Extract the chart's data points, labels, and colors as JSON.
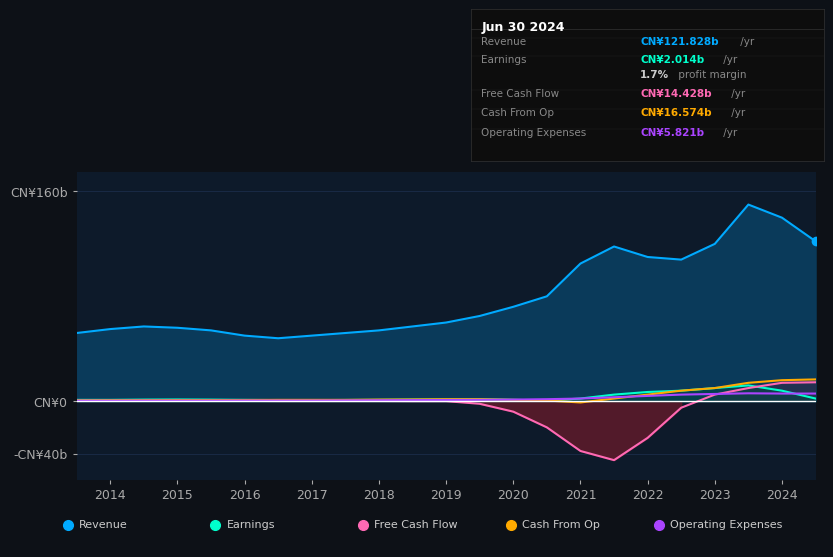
{
  "bg_color": "#0d1117",
  "plot_bg_color": "#0d1a2a",
  "grid_color": "#1e3050",
  "title_date": "Jun 30 2024",
  "table_items": [
    {
      "label": "Revenue",
      "value": "CN¥121.828b /yr",
      "color": "#00aaff"
    },
    {
      "label": "Earnings",
      "value": "CN¥2.014b /yr",
      "color": "#00ffcc"
    },
    {
      "label": "",
      "value": "1.7% profit margin",
      "color": "#ffffff"
    },
    {
      "label": "Free Cash Flow",
      "value": "CN¥14.428b /yr",
      "color": "#ff69b4"
    },
    {
      "label": "Cash From Op",
      "value": "CN¥16.574b /yr",
      "color": "#ffaa00"
    },
    {
      "label": "Operating Expenses",
      "value": "CN¥5.821b /yr",
      "color": "#aa44ff"
    }
  ],
  "years": [
    2013.5,
    2014.0,
    2014.5,
    2015.0,
    2015.5,
    2016.0,
    2016.5,
    2017.0,
    2017.5,
    2018.0,
    2018.5,
    2019.0,
    2019.5,
    2020.0,
    2020.5,
    2021.0,
    2021.5,
    2022.0,
    2022.5,
    2023.0,
    2023.5,
    2024.0,
    2024.5
  ],
  "revenue": [
    52,
    55,
    57,
    56,
    54,
    50,
    48,
    50,
    52,
    54,
    57,
    60,
    65,
    72,
    80,
    105,
    118,
    110,
    108,
    120,
    150,
    140,
    122
  ],
  "earnings": [
    1.0,
    1.0,
    1.2,
    1.3,
    1.2,
    1.0,
    0.8,
    0.8,
    0.9,
    1.0,
    1.2,
    1.3,
    1.5,
    1.0,
    0.5,
    2.0,
    5.0,
    7.0,
    8.0,
    10.0,
    12.0,
    8.0,
    2.0
  ],
  "free_cash_flow": [
    0.5,
    0.5,
    0.5,
    0.5,
    0.3,
    0.2,
    0.1,
    0.1,
    0.1,
    0.1,
    0.0,
    0.0,
    -2.0,
    -8.0,
    -20.0,
    -38.0,
    -45.0,
    -28.0,
    -5.0,
    5.0,
    10.0,
    14.0,
    14.4
  ],
  "cash_from_op": [
    0.5,
    0.6,
    0.7,
    0.8,
    0.8,
    0.9,
    1.0,
    1.0,
    1.0,
    1.2,
    1.3,
    1.5,
    1.5,
    1.0,
    0.5,
    -1.0,
    2.0,
    5.0,
    8.0,
    10.0,
    14.0,
    16.0,
    16.6
  ],
  "operating_expenses": [
    0.3,
    0.3,
    0.4,
    0.4,
    0.4,
    0.5,
    0.5,
    0.5,
    0.6,
    0.7,
    0.8,
    0.9,
    1.0,
    1.2,
    1.5,
    2.0,
    3.0,
    4.0,
    5.0,
    5.5,
    6.0,
    5.8,
    5.8
  ],
  "revenue_color": "#00aaff",
  "revenue_fill": "#0a3a5a",
  "earnings_color": "#00ffcc",
  "fcf_color": "#ff69b4",
  "fcf_fill": "#5a1a2a",
  "cop_color": "#ffaa00",
  "opex_color": "#aa44ff",
  "zero_line_color": "#ffffff",
  "ylim": [
    -60,
    175
  ],
  "yticks": [
    -40,
    0,
    160
  ],
  "ytick_labels": [
    "-CN¥40b",
    "CN¥0",
    "CN¥160b"
  ],
  "legend_labels": [
    "Revenue",
    "Earnings",
    "Free Cash Flow",
    "Cash From Op",
    "Operating Expenses"
  ],
  "legend_colors": [
    "#00aaff",
    "#00ffcc",
    "#ff69b4",
    "#ffaa00",
    "#aa44ff"
  ]
}
